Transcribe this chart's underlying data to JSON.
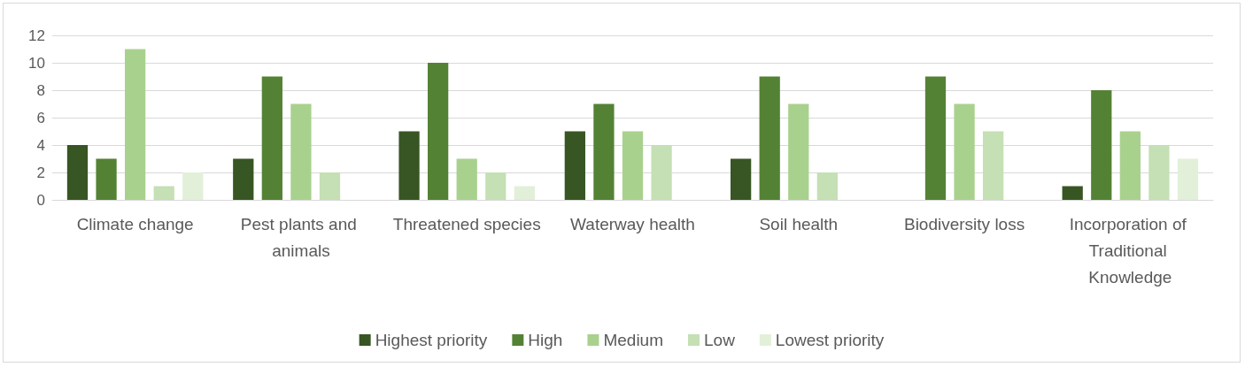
{
  "chart_data": {
    "type": "bar",
    "categories": [
      "Climate change",
      "Pest plants and animals",
      "Threatened species",
      "Waterway health",
      "Soil health",
      "Biodiversity loss",
      "Incorporation of Traditional Knowledge"
    ],
    "series": [
      {
        "name": "Highest priority",
        "color": "#375623",
        "values": [
          4,
          3,
          5,
          5,
          3,
          0,
          1
        ]
      },
      {
        "name": "High",
        "color": "#548235",
        "values": [
          3,
          9,
          10,
          7,
          9,
          9,
          8
        ]
      },
      {
        "name": "Medium",
        "color": "#a9d18e",
        "values": [
          11,
          7,
          3,
          5,
          7,
          7,
          5
        ]
      },
      {
        "name": "Low",
        "color": "#c5e0b4",
        "values": [
          1,
          2,
          2,
          4,
          2,
          5,
          4
        ]
      },
      {
        "name": "Lowest priority",
        "color": "#e2f0d9",
        "values": [
          2,
          0,
          1,
          0,
          0,
          0,
          3
        ]
      }
    ],
    "ylim": [
      0,
      12
    ],
    "yticks": [
      0,
      2,
      4,
      6,
      8,
      10,
      12
    ],
    "grid": "y",
    "legend": "bottom"
  }
}
